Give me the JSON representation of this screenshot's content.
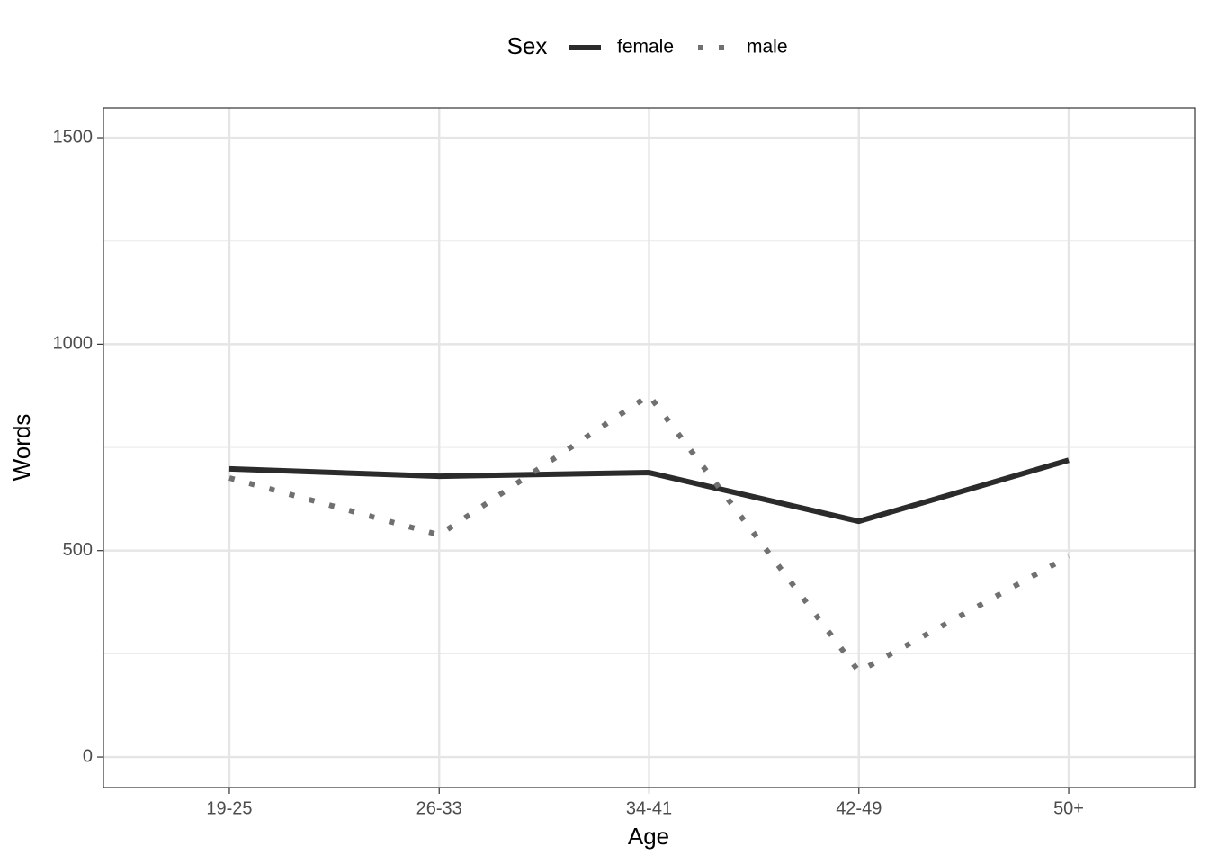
{
  "chart_data": {
    "type": "line",
    "x_label": "Age",
    "y_label": "Words",
    "legend_title": "Sex",
    "legend_position": "top",
    "categories": [
      "19-25",
      "26-33",
      "34-41",
      "42-49",
      "50+"
    ],
    "series": [
      {
        "name": "female",
        "color": "#2b2b2b",
        "dash": "solid",
        "values": [
          698,
          680,
          689,
          571,
          719
        ]
      },
      {
        "name": "male",
        "color": "#707070",
        "dash": "dotted",
        "values": [
          676,
          538,
          876,
          207,
          486
        ]
      }
    ],
    "ylim": [
      -74,
      1572
    ],
    "yticks": [
      0,
      500,
      1000,
      1500
    ],
    "grid": true,
    "minor_grid": true
  }
}
